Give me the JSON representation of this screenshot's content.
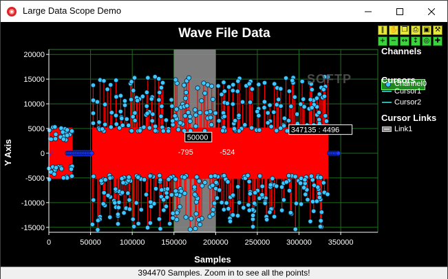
{
  "window": {
    "title": "Large Data Scope Demo",
    "minimize_label": "—",
    "maximize_label": "☐",
    "close_label": "✕"
  },
  "toolbar": {
    "row1": [
      "pause-icon",
      "hand-icon",
      "copy-icon",
      "print-icon",
      "save-icon",
      "settings-icon"
    ],
    "row2": [
      "zoom-in-icon",
      "zoom-out-icon",
      "zoom-x-icon",
      "zoom-y-icon",
      "zoom-fit-icon",
      "add-icon"
    ]
  },
  "legend": {
    "channels_title": "Channels",
    "channels": [
      {
        "label": "Channel0",
        "color": "#22a6ff"
      }
    ],
    "cursors_title": "Cursors",
    "cursors": [
      {
        "label": "Cursor1"
      },
      {
        "label": "Cursor2"
      }
    ],
    "cursor_links_title": "Cursor Links",
    "cursor_links": [
      {
        "label": "Link1"
      }
    ]
  },
  "watermark": "SOFTP",
  "status": "394470 Samples. Zoom in to see all the points!",
  "chart_data": {
    "type": "line",
    "title": "Wave File Data",
    "xlabel": "Samples",
    "ylabel": "Y Axis",
    "xlim": [
      0,
      394470
    ],
    "ylim": [
      -16000,
      21000
    ],
    "x_ticks": [
      "0",
      "50000",
      "100000",
      "150000",
      "200000",
      "250000",
      "300000",
      "350000"
    ],
    "y_ticks": [
      "20000",
      "15000",
      "10000",
      "5000",
      "0",
      "-5000",
      "-10000",
      "-15000"
    ],
    "grid": true,
    "series": [
      {
        "name": "Channel0",
        "line_color": "#ff0000",
        "marker_color": "#3ec8ff"
      }
    ],
    "selection_range": [
      150000,
      200000
    ],
    "cursor_labels": [
      {
        "text": "50000",
        "x": 150000,
        "y": 3000
      },
      {
        "text": "-795",
        "x": 150000,
        "y": 0
      },
      {
        "text": "-524",
        "x": 200000,
        "y": 0
      },
      {
        "text": "347135 : 4496",
        "x": 347135,
        "y": 4496
      }
    ]
  }
}
